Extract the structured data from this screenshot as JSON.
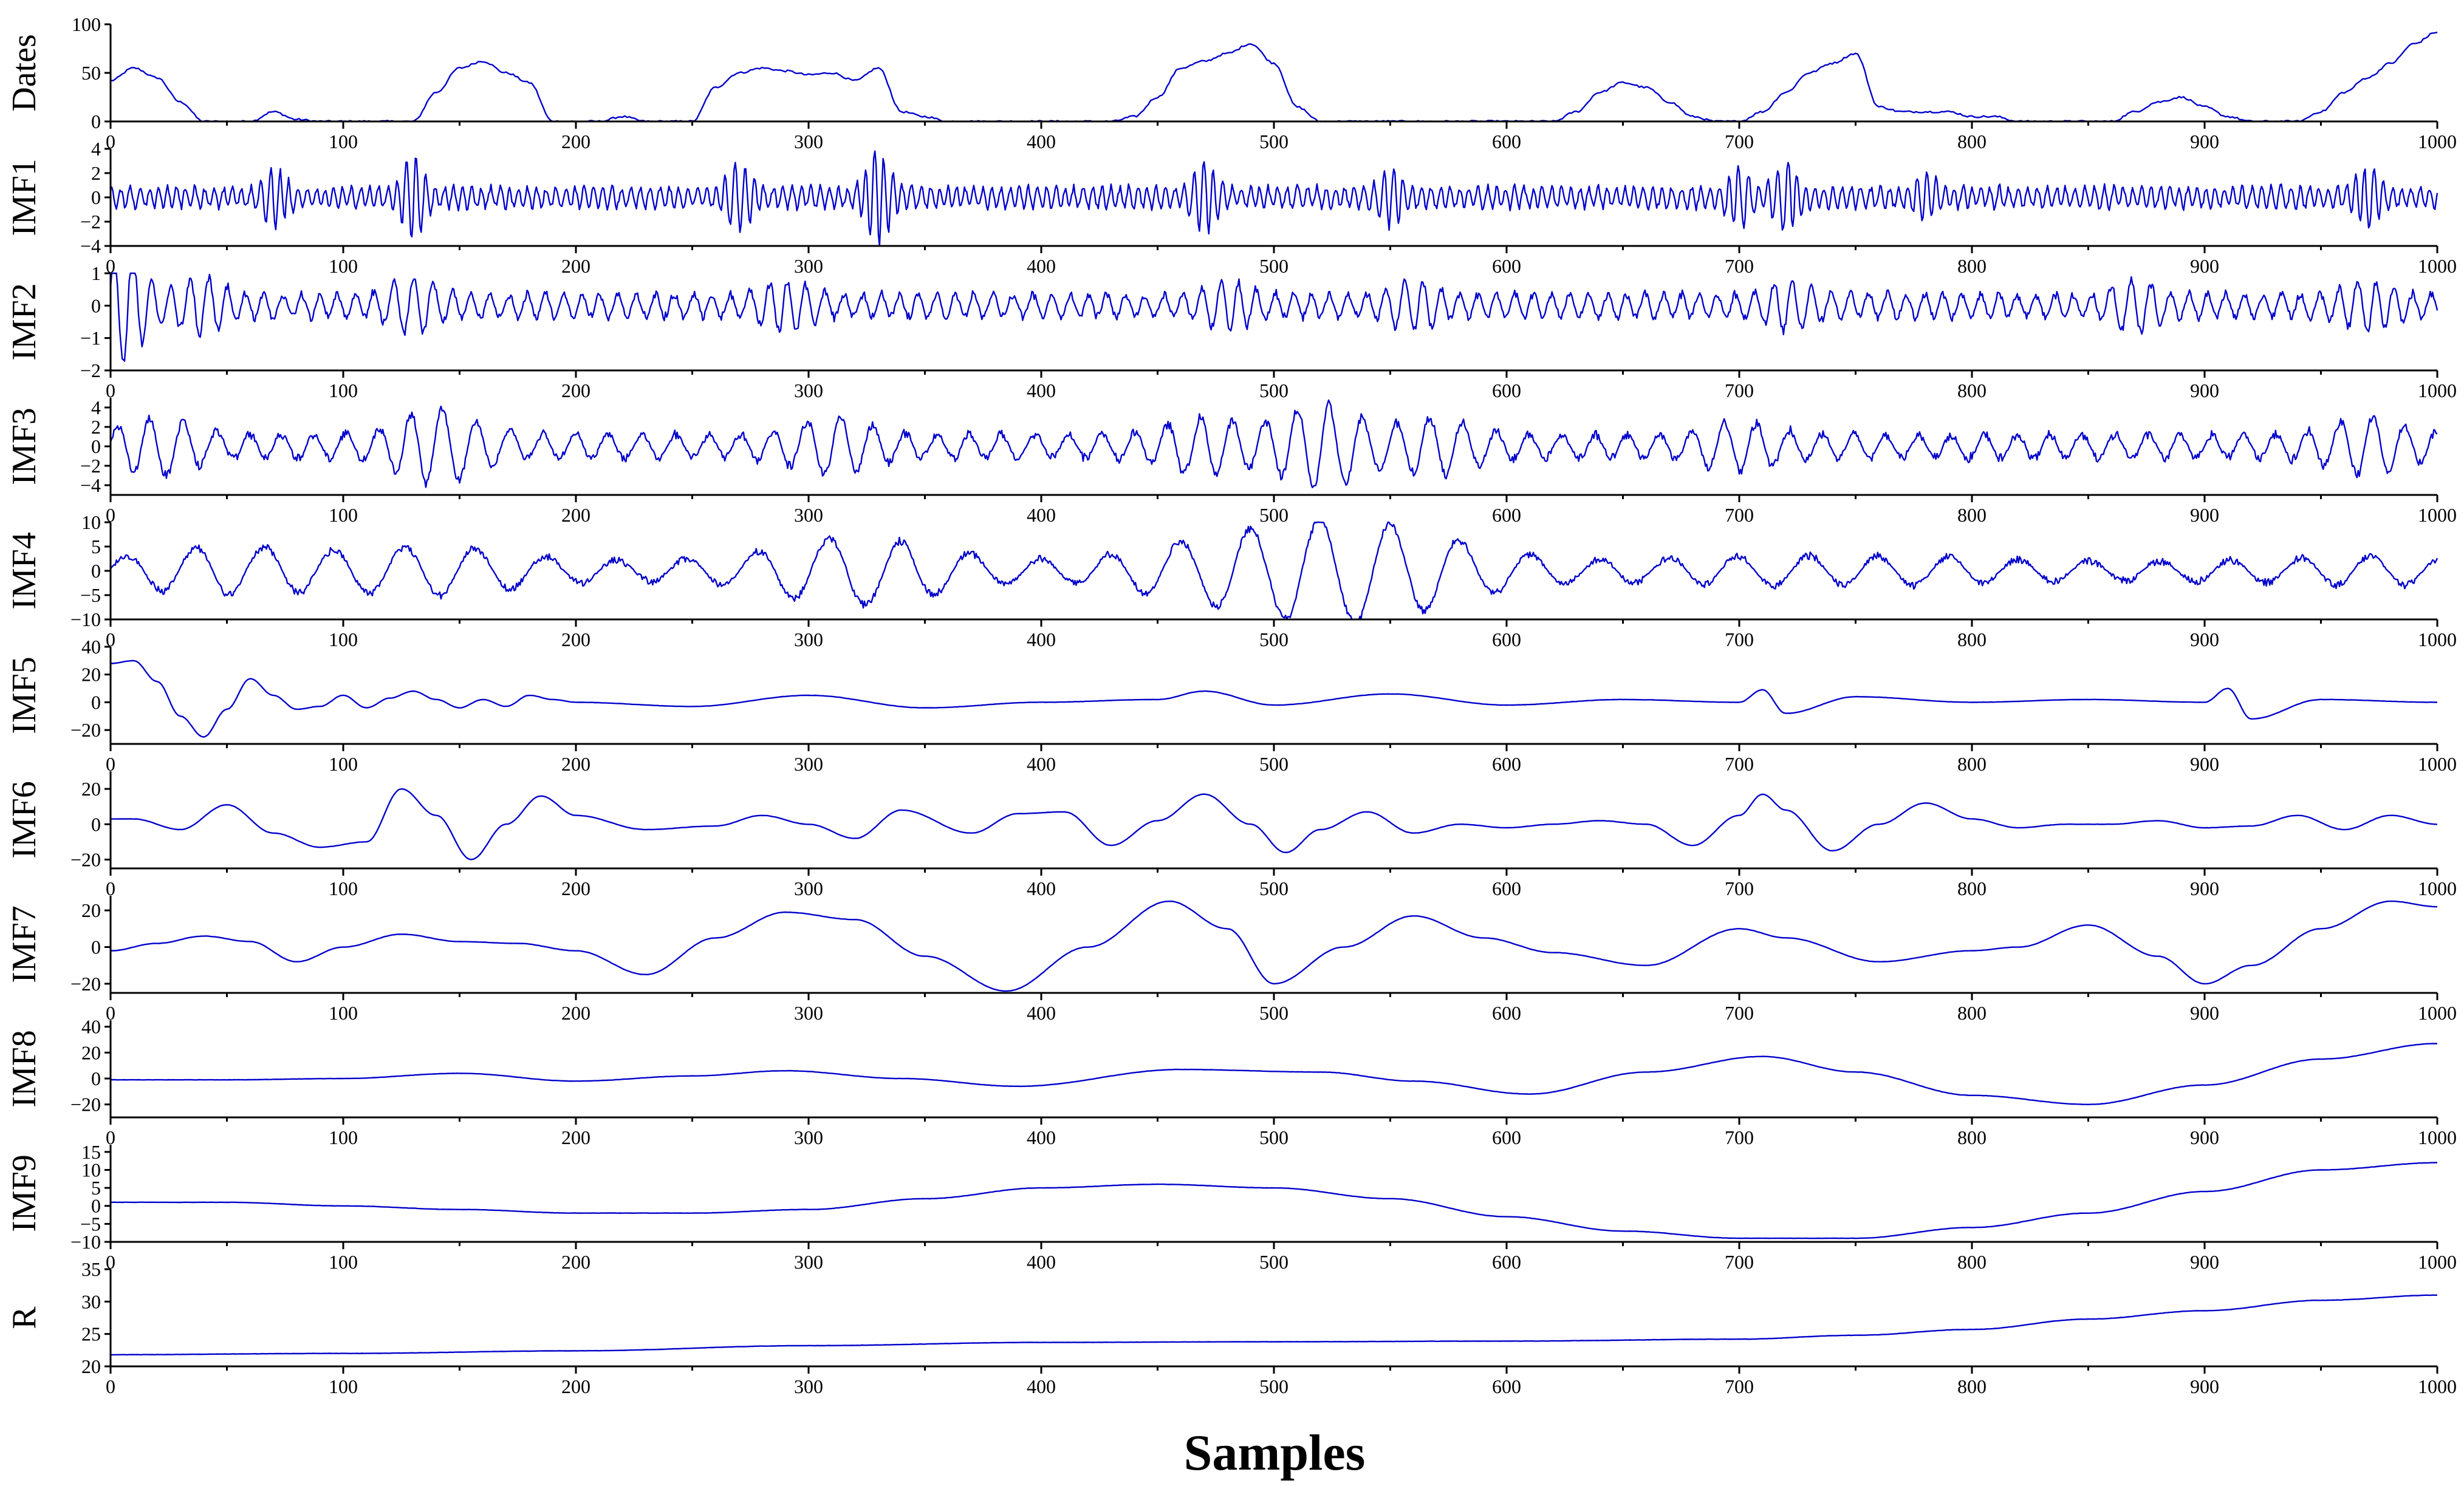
{
  "chart_data": {
    "type": "line",
    "xlabel": "Samples",
    "xlim": [
      0,
      1000
    ],
    "x_ticks": [
      "0",
      "100",
      "200",
      "300",
      "400",
      "500",
      "600",
      "700",
      "800",
      "900",
      "1000"
    ],
    "line_color": "#0000cc",
    "grid": false,
    "panels": [
      {
        "name": "Dates",
        "ylim": [
          0,
          100
        ],
        "y_ticks": [
          0,
          50,
          100
        ],
        "y_tick_labels": [
          "0",
          "50",
          "100"
        ],
        "series": {
          "x": [
            0,
            10,
            20,
            30,
            40,
            50,
            60,
            70,
            80,
            90,
            100,
            110,
            120,
            130,
            140,
            150,
            160,
            170,
            180,
            190,
            200,
            210,
            220,
            230,
            240,
            250,
            260,
            270,
            280,
            290,
            300,
            310,
            320,
            330,
            340,
            350,
            360,
            370,
            380,
            390,
            400,
            410,
            420,
            430,
            440,
            450,
            460,
            470,
            480,
            490,
            500,
            510,
            520,
            530,
            540,
            550,
            560,
            570,
            580,
            590,
            600,
            610,
            620,
            630,
            640,
            650,
            660,
            670,
            680,
            690,
            700,
            710,
            720,
            730,
            740,
            750,
            760,
            770,
            780,
            790,
            800,
            810,
            820,
            830,
            840,
            850,
            860,
            870,
            880,
            890,
            900,
            910,
            920,
            930,
            940,
            950,
            960,
            970,
            980,
            990,
            1000
          ],
          "y": [
            42,
            55,
            45,
            20,
            0,
            0,
            0,
            10,
            2,
            0,
            0,
            0,
            0,
            0,
            30,
            55,
            62,
            50,
            40,
            0,
            0,
            0,
            5,
            0,
            0,
            0,
            35,
            50,
            55,
            52,
            48,
            50,
            42,
            55,
            10,
            5,
            0,
            0,
            0,
            0,
            0,
            0,
            0,
            0,
            5,
            25,
            55,
            62,
            70,
            80,
            60,
            15,
            0,
            0,
            0,
            0,
            0,
            0,
            0,
            0,
            0,
            0,
            0,
            10,
            30,
            40,
            35,
            20,
            5,
            0,
            0,
            10,
            30,
            50,
            60,
            70,
            15,
            10,
            10,
            10,
            5,
            5,
            0,
            0,
            0,
            0,
            0,
            10,
            20,
            25,
            15,
            5,
            0,
            0,
            0,
            10,
            30,
            45,
            60,
            80,
            92
          ]
        },
        "series_labels": {
          "x": "Samples",
          "y": "Dates"
        }
      },
      {
        "name": "IMF1",
        "ylim": [
          -4,
          4
        ],
        "y_ticks": [
          -4,
          -2,
          0,
          2,
          4
        ],
        "y_tick_labels": [
          "−4",
          "−2",
          "0",
          "2",
          "4"
        ],
        "oscillation": {
          "samples_per_cycle": 4,
          "amplitude_base": 0.8,
          "bursts": [
            [
              70,
              2.5
            ],
            [
              130,
              3.5
            ],
            [
              270,
              3
            ],
            [
              330,
              4
            ],
            [
              470,
              3
            ],
            [
              550,
              2.5
            ],
            [
              700,
              2.5
            ],
            [
              720,
              3
            ],
            [
              780,
              2
            ],
            [
              970,
              2.5
            ]
          ]
        }
      },
      {
        "name": "IMF2",
        "ylim": [
          -2,
          1
        ],
        "y_ticks": [
          -2,
          -1,
          0,
          1
        ],
        "y_tick_labels": [
          "−2",
          "−1",
          "0",
          "1"
        ],
        "oscillation": {
          "samples_per_cycle": 8,
          "amplitude_base": 0.35,
          "bursts": [
            [
              5,
              1.8
            ],
            [
              40,
              0.9
            ],
            [
              130,
              0.9
            ],
            [
              290,
              0.8
            ],
            [
              480,
              0.8
            ],
            [
              560,
              0.8
            ],
            [
              720,
              0.8
            ],
            [
              870,
              0.8
            ],
            [
              970,
              0.8
            ]
          ]
        }
      },
      {
        "name": "IMF3",
        "ylim": [
          -5,
          5
        ],
        "y_ticks": [
          -4,
          -2,
          0,
          2,
          4
        ],
        "y_tick_labels": [
          "−4",
          "−2",
          "0",
          "2",
          "4"
        ],
        "oscillation": {
          "samples_per_cycle": 14,
          "amplitude_base": 1.2,
          "bursts": [
            [
              20,
              3
            ],
            [
              140,
              4
            ],
            [
              310,
              3
            ],
            [
              470,
              3
            ],
            [
              520,
              4.5
            ],
            [
              570,
              3
            ],
            [
              700,
              2.5
            ],
            [
              970,
              3
            ]
          ]
        }
      },
      {
        "name": "IMF4",
        "ylim": [
          -10,
          10
        ],
        "y_ticks": [
          -10,
          -5,
          0,
          5,
          10
        ],
        "y_tick_labels": [
          "−10",
          "−5",
          "0",
          "5",
          "10"
        ],
        "oscillation": {
          "samples_per_cycle": 30,
          "amplitude_base": 2.0,
          "bursts": [
            [
              50,
              5
            ],
            [
              140,
              5
            ],
            [
              320,
              7
            ],
            [
              470,
              5
            ],
            [
              520,
              8
            ],
            [
              560,
              6
            ],
            [
              700,
              3
            ],
            [
              770,
              3
            ],
            [
              970,
              3
            ]
          ]
        }
      },
      {
        "name": "IMF5",
        "ylim": [
          -30,
          40
        ],
        "y_ticks": [
          -20,
          0,
          20,
          40
        ],
        "y_tick_labels": [
          "−20",
          "0",
          "20",
          "40"
        ],
        "series": {
          "x": [
            0,
            10,
            20,
            30,
            40,
            50,
            60,
            70,
            80,
            90,
            100,
            110,
            120,
            130,
            140,
            150,
            160,
            170,
            180,
            190,
            200,
            250,
            300,
            350,
            400,
            450,
            470,
            500,
            550,
            600,
            650,
            700,
            710,
            720,
            750,
            800,
            850,
            900,
            910,
            920,
            950,
            1000
          ],
          "y": [
            28,
            30,
            15,
            -10,
            -25,
            -5,
            17,
            5,
            -5,
            -3,
            5,
            -4,
            3,
            8,
            2,
            -4,
            2,
            -3,
            5,
            2,
            0,
            -3,
            5,
            -4,
            0,
            2,
            8,
            -2,
            6,
            -2,
            2,
            0,
            9,
            -8,
            4,
            0,
            2,
            0,
            10,
            -12,
            2,
            0
          ]
        }
      },
      {
        "name": "IMF6",
        "ylim": [
          -25,
          30
        ],
        "y_ticks": [
          -20,
          0,
          20
        ],
        "y_tick_labels": [
          "−20",
          "0",
          "20"
        ],
        "series": {
          "x": [
            0,
            10,
            30,
            50,
            70,
            90,
            110,
            125,
            140,
            155,
            170,
            185,
            200,
            230,
            260,
            280,
            300,
            320,
            340,
            370,
            390,
            410,
            430,
            450,
            470,
            490,
            505,
            520,
            540,
            560,
            580,
            600,
            620,
            640,
            660,
            680,
            700,
            710,
            720,
            740,
            760,
            780,
            800,
            820,
            840,
            860,
            880,
            900,
            920,
            940,
            960,
            980,
            1000
          ],
          "y": [
            3,
            3,
            -3,
            11,
            -5,
            -13,
            -10,
            20,
            5,
            -20,
            0,
            16,
            5,
            -3,
            -1,
            5,
            0,
            -8,
            8,
            -5,
            6,
            7,
            -12,
            2,
            17,
            0,
            -16,
            -3,
            7,
            -5,
            0,
            -2,
            0,
            2,
            0,
            -12,
            5,
            17,
            8,
            -15,
            0,
            12,
            3,
            -2,
            0,
            0,
            2,
            -2,
            -1,
            5,
            -3,
            5,
            0
          ]
        }
      },
      {
        "name": "IMF7",
        "ylim": [
          -25,
          28
        ],
        "y_ticks": [
          -20,
          0,
          20
        ],
        "y_tick_labels": [
          "−20",
          "0",
          "20"
        ],
        "series": {
          "x": [
            0,
            20,
            40,
            60,
            80,
            100,
            125,
            150,
            175,
            200,
            230,
            260,
            290,
            320,
            350,
            385,
            420,
            455,
            480,
            500,
            530,
            560,
            590,
            620,
            660,
            700,
            720,
            760,
            800,
            820,
            850,
            880,
            900,
            920,
            950,
            980,
            1000
          ],
          "y": [
            -2,
            2,
            6,
            3,
            -8,
            0,
            7,
            3,
            2,
            -2,
            -15,
            5,
            19,
            15,
            -5,
            -24,
            0,
            25,
            10,
            -20,
            0,
            17,
            5,
            -3,
            -10,
            10,
            5,
            -8,
            -2,
            0,
            12,
            -5,
            -20,
            -10,
            10,
            25,
            22
          ]
        }
      },
      {
        "name": "IMF8",
        "ylim": [
          -30,
          45
        ],
        "y_ticks": [
          -20,
          0,
          20,
          40
        ],
        "y_tick_labels": [
          "−20",
          "0",
          "20",
          "40"
        ],
        "series": {
          "x": [
            0,
            50,
            100,
            150,
            200,
            250,
            290,
            340,
            390,
            460,
            520,
            560,
            610,
            660,
            710,
            750,
            800,
            850,
            900,
            950,
            1000
          ],
          "y": [
            -1,
            -1,
            0,
            4,
            -2,
            2,
            6,
            0,
            -6,
            7,
            5,
            -2,
            -12,
            5,
            17,
            5,
            -13,
            -20,
            -5,
            15,
            27
          ]
        }
      },
      {
        "name": "IMF9",
        "ylim": [
          -10,
          17
        ],
        "y_ticks": [
          -10,
          -5,
          0,
          5,
          10,
          15
        ],
        "y_tick_labels": [
          "−10",
          "−5",
          "0",
          "5",
          "10",
          "15"
        ],
        "series": {
          "x": [
            0,
            50,
            100,
            150,
            200,
            250,
            300,
            350,
            400,
            450,
            500,
            550,
            600,
            650,
            700,
            750,
            800,
            850,
            900,
            950,
            1000
          ],
          "y": [
            1,
            1,
            0,
            -1,
            -2,
            -2,
            -1,
            2,
            5,
            6,
            5,
            2,
            -3,
            -7,
            -9,
            -9,
            -6,
            -2,
            4,
            10,
            12
          ]
        }
      },
      {
        "name": "R",
        "ylim": [
          20,
          35
        ],
        "y_ticks": [
          20,
          25,
          30,
          35
        ],
        "y_tick_labels": [
          "20",
          "25",
          "30",
          "35"
        ],
        "series": {
          "x": [
            0,
            100,
            200,
            300,
            400,
            500,
            600,
            700,
            750,
            800,
            850,
            900,
            950,
            1000
          ],
          "y": [
            21.8,
            22,
            22.4,
            23.2,
            23.7,
            23.8,
            23.9,
            24.2,
            24.8,
            25.7,
            27.3,
            28.6,
            30.2,
            31
          ]
        }
      }
    ]
  }
}
